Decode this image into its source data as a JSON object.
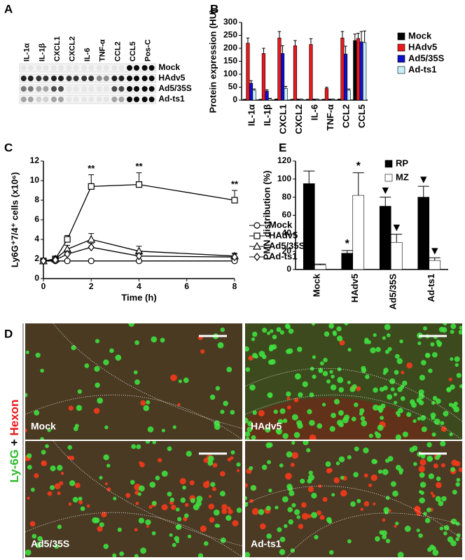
{
  "panel_labels": [
    "A",
    "B",
    "C",
    "D",
    "E"
  ],
  "blot": {
    "cytokines": [
      "IL-1α",
      "IL-1β",
      "CXCL1",
      "CXCL2",
      "IL-6",
      "TNF-α",
      "CCL2",
      "CCL5",
      "Pos-C"
    ],
    "rows": [
      "Mock",
      "HAdv5",
      "Ad5/35S",
      "Ad-ts1"
    ]
  },
  "micrographs": {
    "stain_1": "Ly-6G",
    "plus": " + ",
    "stain_2": "Hexon",
    "panels": [
      "Mock",
      "HAdv5",
      "Ad5/35S",
      "Ad-ts1"
    ]
  },
  "chart_data": [
    {
      "type": "bar",
      "ylabel": "Protein expression (HU)",
      "categories": [
        "IL-1α",
        "IL-1β",
        "CXCL1",
        "CXCL2",
        "IL-6",
        "TNF-α",
        "CCL2",
        "CCL5"
      ],
      "ylim": [
        0,
        300
      ],
      "yticks": [
        0,
        50,
        100,
        150,
        200,
        250,
        300
      ],
      "legend": "right",
      "series": [
        {
          "name": "Mock",
          "color": "#000000",
          "values": [
            2,
            2,
            3,
            2,
            2,
            2,
            3,
            230
          ],
          "errors": [
            1,
            1,
            1,
            1,
            1,
            1,
            1,
            25
          ]
        },
        {
          "name": "HAdv5",
          "color": "#e8191c",
          "values": [
            220,
            180,
            240,
            210,
            215,
            45,
            240,
            238
          ],
          "errors": [
            20,
            20,
            25,
            20,
            22,
            5,
            25,
            20
          ]
        },
        {
          "name": "Ad5/35S",
          "color": "#1010c8",
          "values": [
            65,
            35,
            180,
            3,
            3,
            3,
            178,
            225
          ],
          "errors": [
            10,
            5,
            30,
            1,
            1,
            1,
            30,
            40
          ]
        },
        {
          "name": "Ad-ts1",
          "color": "#c8f0fa",
          "values": [
            38,
            5,
            45,
            3,
            3,
            3,
            38,
            222
          ],
          "errors": [
            5,
            2,
            8,
            1,
            1,
            1,
            5,
            45
          ]
        }
      ]
    },
    {
      "type": "line",
      "xlabel": "Time (h)",
      "ylabel": "Ly6G⁺7/4⁺ cells (x10⁶)",
      "x": [
        0,
        0.5,
        1,
        2,
        4,
        8
      ],
      "xlim": [
        0,
        8
      ],
      "xticks": [
        0,
        2,
        4,
        6,
        8
      ],
      "ylim": [
        0,
        12
      ],
      "yticks": [
        0,
        2,
        4,
        6,
        8,
        10,
        12
      ],
      "legend": "right",
      "series": [
        {
          "name": "Mock",
          "marker": "circle",
          "color": "#000000",
          "values": [
            1.8,
            1.8,
            1.8,
            1.8,
            1.8,
            1.8
          ],
          "errors": [
            0.1,
            0.1,
            0.1,
            0.1,
            0.1,
            0.1
          ]
        },
        {
          "name": "HAdv5",
          "marker": "square",
          "color": "#000000",
          "values": [
            1.8,
            2.0,
            4.0,
            9.4,
            9.6,
            8.0
          ],
          "errors": [
            0.2,
            0.3,
            0.4,
            1.2,
            1.2,
            1.0
          ],
          "annotations": [
            null,
            null,
            null,
            "**",
            "**",
            "**"
          ]
        },
        {
          "name": "Ad5/35S",
          "marker": "triangle",
          "color": "#000000",
          "values": [
            1.8,
            2.0,
            3.0,
            4.0,
            2.8,
            2.3
          ],
          "errors": [
            0.2,
            0.2,
            0.4,
            0.6,
            0.5,
            0.3
          ]
        },
        {
          "name": "Ad-ts1",
          "marker": "diamond",
          "color": "#000000",
          "values": [
            1.8,
            1.9,
            2.5,
            3.2,
            2.3,
            2.2
          ],
          "errors": [
            0.2,
            0.2,
            0.3,
            0.4,
            0.3,
            0.3
          ]
        }
      ]
    },
    {
      "type": "bar",
      "ylabel": "PMN distribution (%)",
      "categories": [
        "Mock",
        "HAdv5",
        "Ad5/35S",
        "Ad-ts1"
      ],
      "ylim": [
        0,
        120
      ],
      "yticks": [
        0,
        20,
        40,
        60,
        80,
        100,
        120
      ],
      "legend": "top-right",
      "series": [
        {
          "name": "RP",
          "color": "#000000",
          "values": [
            95,
            18,
            70,
            80
          ],
          "errors": [
            14,
            3,
            10,
            12
          ],
          "annotations": [
            null,
            "*",
            "▼",
            "▼"
          ]
        },
        {
          "name": "MZ",
          "color": "#ffffff",
          "values": [
            5,
            82,
            30,
            10
          ],
          "errors": [
            1,
            25,
            9,
            3
          ],
          "annotations": [
            null,
            "*",
            "▼",
            "▼"
          ]
        }
      ]
    }
  ]
}
